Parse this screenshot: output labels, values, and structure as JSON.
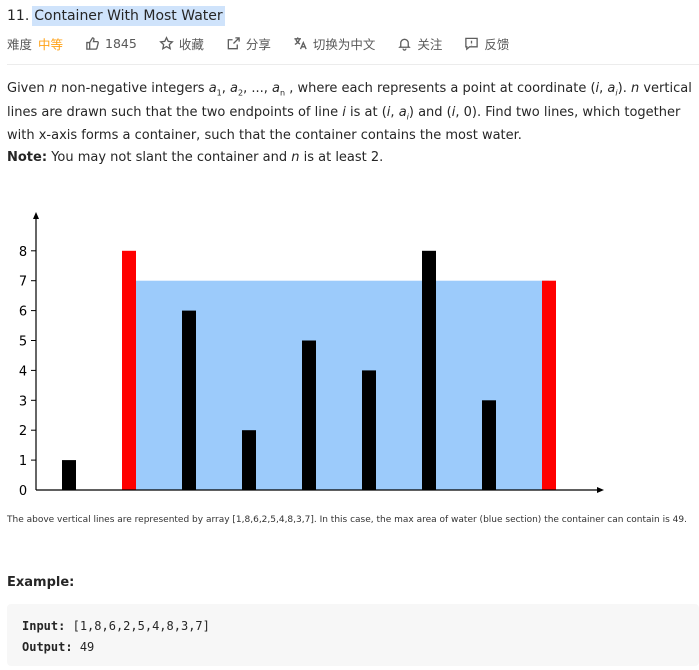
{
  "header": {
    "number": "11.",
    "title": "Container With Most Water"
  },
  "meta": {
    "difficulty_label": "难度",
    "difficulty": "中等",
    "likes": "1845",
    "favorite": "收藏",
    "share": "分享",
    "switch_lang": "切换为中文",
    "follow": "关注",
    "feedback": "反馈",
    "difficulty_color": "#ffa116"
  },
  "description": {
    "p1": "Given n non-negative integers a1, a2, ..., an , where each represents a point at coordinate (i, ai). n vertical lines are drawn such that the two endpoints of line i is at (i, ai) and (i, 0). Find two lines, which together with x-axis forms a container, such that the container contains the most water."
  },
  "note": {
    "label": "Note:",
    "text": "You may not slant the container and n is at least 2."
  },
  "chart_data": {
    "type": "bar",
    "values": [
      1,
      8,
      6,
      2,
      5,
      4,
      8,
      3,
      7
    ],
    "highlight_indices": [
      1,
      8
    ],
    "water_level": 7,
    "water_range": [
      1,
      8
    ],
    "ylim": [
      0,
      8
    ],
    "yticks": [
      "0",
      "1",
      "2",
      "3",
      "4",
      "5",
      "6",
      "7",
      "8"
    ],
    "colors": {
      "bar": "#000000",
      "highlight": "#ff0000",
      "water": "#9ccbfb"
    }
  },
  "caption": "The above vertical lines are represented by array [1,8,6,2,5,4,8,3,7]. In this case, the max area of water (blue section) the container can contain is 49.",
  "example": {
    "title": "Example:",
    "input_label": "Input:",
    "input_value": "[1,8,6,2,5,4,8,3,7]",
    "output_label": "Output:",
    "output_value": "49"
  }
}
